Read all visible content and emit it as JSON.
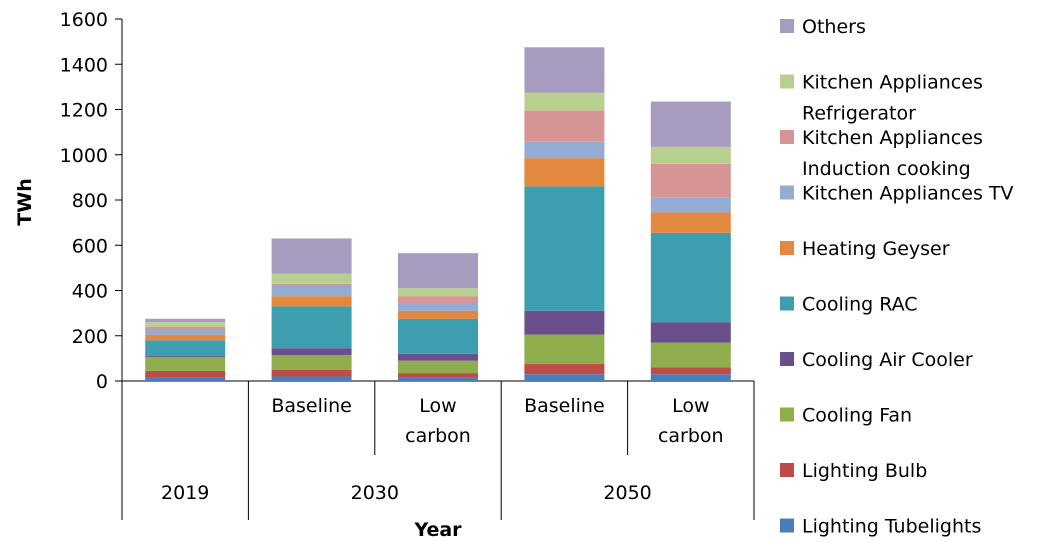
{
  "chart_data": {
    "type": "bar",
    "stacked": true,
    "categories": [
      {
        "label": "",
        "group": "2019"
      },
      {
        "label": "Baseline",
        "group": "2030"
      },
      {
        "label": "Low carbon",
        "group": "2030"
      },
      {
        "label": "Baseline",
        "group": "2050"
      },
      {
        "label": "Low carbon",
        "group": "2050"
      }
    ],
    "groups": [
      "2019",
      "2030",
      "2050"
    ],
    "xlabel": "Year",
    "ylabel": "TWh",
    "ylim": [
      0,
      1600
    ],
    "yticks": [
      0,
      200,
      400,
      600,
      800,
      1000,
      1200,
      1400,
      1600
    ],
    "legend_position": "right",
    "series": [
      {
        "name": "Lighting Tubelights",
        "color": "#4a7ebb",
        "values": [
          15,
          20,
          15,
          30,
          30
        ]
      },
      {
        "name": "Lighting Bulb",
        "color": "#be4b48",
        "values": [
          30,
          30,
          20,
          45,
          30
        ]
      },
      {
        "name": "Cooling Fan",
        "color": "#8fad4d",
        "values": [
          60,
          65,
          55,
          130,
          110
        ]
      },
      {
        "name": "Cooling Air Cooler",
        "color": "#6a4f8c",
        "values": [
          5,
          30,
          30,
          105,
          90
        ]
      },
      {
        "name": "Cooling RAC",
        "color": "#3d9eb0",
        "values": [
          70,
          185,
          155,
          550,
          395
        ]
      },
      {
        "name": "Heating Geyser",
        "color": "#e3893f",
        "values": [
          25,
          45,
          35,
          125,
          90
        ]
      },
      {
        "name": "Kitchen Appliances TV",
        "color": "#94acd4",
        "values": [
          25,
          45,
          35,
          75,
          65
        ]
      },
      {
        "name": "Kitchen Appliances Induction cooking",
        "color": "#d69594",
        "values": [
          10,
          10,
          30,
          135,
          150
        ]
      },
      {
        "name": "Kitchen Appliances Refrigerator",
        "color": "#b8d08f",
        "values": [
          20,
          45,
          35,
          80,
          75
        ]
      },
      {
        "name": "Others",
        "color": "#a89bc0",
        "values": [
          15,
          155,
          155,
          200,
          200
        ]
      }
    ],
    "legend_order": [
      9,
      8,
      7,
      6,
      5,
      4,
      3,
      2,
      1,
      0
    ],
    "legend_labels": [
      [
        "Others"
      ],
      [
        "Kitchen Appliances",
        "Refrigerator"
      ],
      [
        "Kitchen Appliances",
        "Induction cooking"
      ],
      [
        "Kitchen Appliances TV"
      ],
      [
        "Heating Geyser"
      ],
      [
        "Cooling RAC"
      ],
      [
        "Cooling Air Cooler"
      ],
      [
        "Cooling Fan"
      ],
      [
        "Lighting Bulb"
      ],
      [
        "Lighting Tubelights"
      ]
    ],
    "category_label_lines": [
      [],
      [
        "Baseline"
      ],
      [
        "Low",
        "carbon"
      ],
      [
        "Baseline"
      ],
      [
        "Low",
        "carbon"
      ]
    ]
  }
}
